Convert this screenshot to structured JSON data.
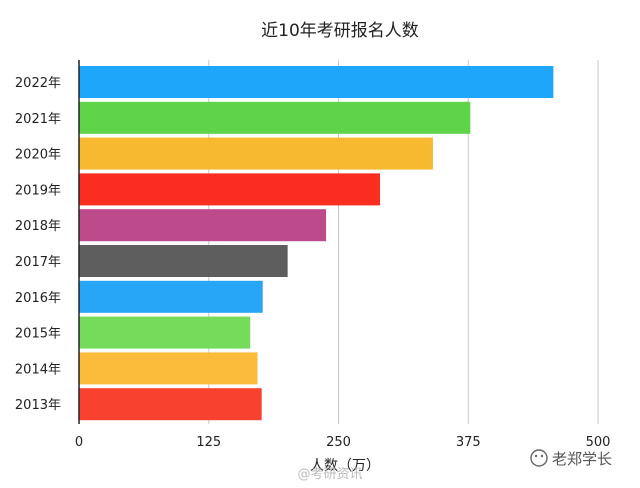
{
  "chart_data": {
    "type": "bar",
    "orientation": "horizontal",
    "title": "近10年考研报名人数",
    "xlabel": "人数（万）",
    "ylabel": "",
    "categories": [
      "2022年",
      "2021年",
      "2020年",
      "2019年",
      "2018年",
      "2017年",
      "2016年",
      "2015年",
      "2014年",
      "2013年"
    ],
    "values": [
      457,
      377,
      341,
      290,
      238,
      201,
      177,
      165,
      172,
      176
    ],
    "colors": [
      "#1ea6fb",
      "#5fd448",
      "#f6b930",
      "#fb2c20",
      "#bd4b8b",
      "#5e5e5e",
      "#27a5f7",
      "#74dc5a",
      "#fbbc3c",
      "#f8412f"
    ],
    "xlim": [
      0,
      500
    ],
    "xticks": [
      0,
      125,
      250,
      375,
      500
    ],
    "grid": true,
    "legend": "none"
  },
  "watermarks": {
    "center": "@考研资讯",
    "right": "老郑学长"
  }
}
